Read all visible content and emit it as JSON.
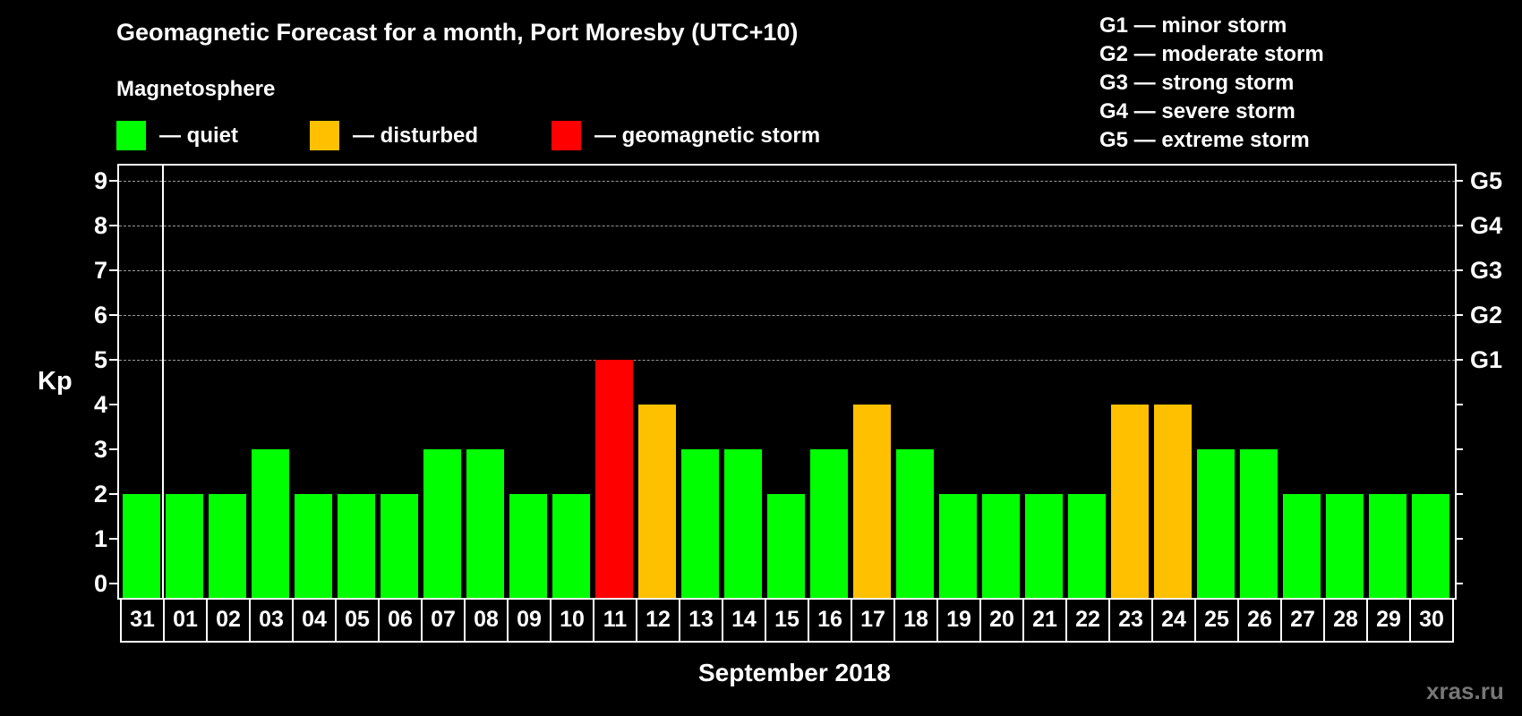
{
  "header": {
    "title": "Geomagnetic Forecast for a month, Port Moresby (UTC+10)",
    "subtitle": "Magnetosphere"
  },
  "legend": [
    {
      "label": "— quiet",
      "color": "#00FF00"
    },
    {
      "label": "— disturbed",
      "color": "#FFC000"
    },
    {
      "label": "— geomagnetic storm",
      "color": "#FF0000"
    }
  ],
  "g_scale": [
    {
      "level": "G1",
      "label": "G1 — minor storm",
      "kp": 5
    },
    {
      "level": "G2",
      "label": "G2 — moderate storm",
      "kp": 6
    },
    {
      "level": "G3",
      "label": "G3 — strong storm",
      "kp": 7
    },
    {
      "level": "G4",
      "label": "G4 — severe storm",
      "kp": 8
    },
    {
      "level": "G5",
      "label": "G5 — extreme storm",
      "kp": 9
    }
  ],
  "axis": {
    "ylabel": "Kp",
    "xlabel": "September 2018",
    "yticks": [
      "0",
      "1",
      "2",
      "3",
      "4",
      "5",
      "6",
      "7",
      "8",
      "9"
    ]
  },
  "watermark": "xras.ru",
  "chart_data": {
    "type": "bar",
    "title": "Geomagnetic Forecast for a month, Port Moresby (UTC+10)",
    "subtitle": "Magnetosphere",
    "xlabel": "September 2018",
    "ylabel": "Kp",
    "ylim": [
      0,
      9
    ],
    "grid": "horizontal dashed at Kp 5-9",
    "legend_position": "top",
    "categories": [
      "31",
      "01",
      "02",
      "03",
      "04",
      "05",
      "06",
      "07",
      "08",
      "09",
      "10",
      "11",
      "12",
      "13",
      "14",
      "15",
      "16",
      "17",
      "18",
      "19",
      "20",
      "21",
      "22",
      "23",
      "24",
      "25",
      "26",
      "27",
      "28",
      "29",
      "30"
    ],
    "values": [
      2,
      2,
      2,
      3,
      2,
      2,
      2,
      3,
      3,
      2,
      2,
      5,
      4,
      3,
      3,
      2,
      3,
      4,
      3,
      2,
      2,
      2,
      2,
      4,
      4,
      3,
      3,
      2,
      2,
      2,
      2
    ],
    "status": [
      "quiet",
      "quiet",
      "quiet",
      "quiet",
      "quiet",
      "quiet",
      "quiet",
      "quiet",
      "quiet",
      "quiet",
      "quiet",
      "storm",
      "disturbed",
      "quiet",
      "quiet",
      "quiet",
      "quiet",
      "disturbed",
      "quiet",
      "quiet",
      "quiet",
      "quiet",
      "quiet",
      "disturbed",
      "disturbed",
      "quiet",
      "quiet",
      "quiet",
      "quiet",
      "quiet",
      "quiet"
    ],
    "status_colors": {
      "quiet": "#00FF00",
      "disturbed": "#FFC000",
      "storm": "#FF0000"
    },
    "right_axis_labels": {
      "5": "G1",
      "6": "G2",
      "7": "G3",
      "8": "G4",
      "9": "G5"
    }
  }
}
